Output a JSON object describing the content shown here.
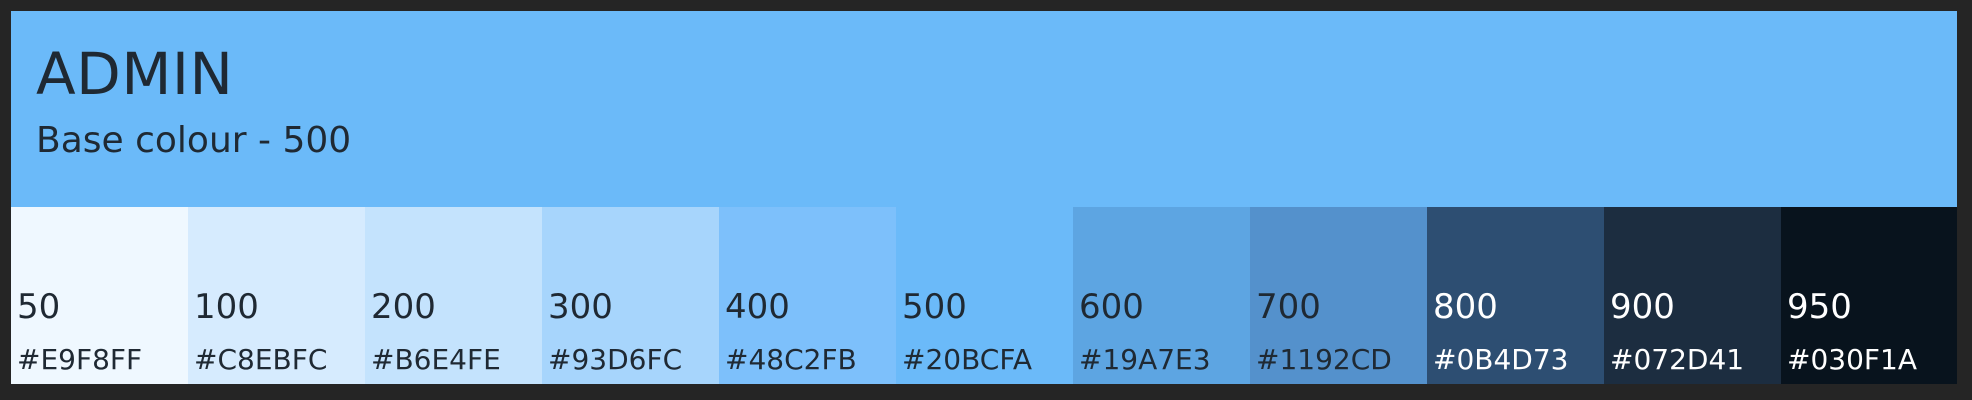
{
  "palette": {
    "title": "ADMIN",
    "subtitle": "Base colour - 500",
    "header_color": "#6BBAF9",
    "swatches": [
      {
        "label": "50",
        "hex": "#E9F8FF",
        "swatch_color": "#EFF8FF",
        "text_color": "#1F2933"
      },
      {
        "label": "100",
        "hex": "#C8EBFC",
        "swatch_color": "#D6EBFE",
        "text_color": "#1F2933"
      },
      {
        "label": "200",
        "hex": "#B6E4FE",
        "swatch_color": "#C4E3FD",
        "text_color": "#1F2933"
      },
      {
        "label": "300",
        "hex": "#93D6FC",
        "swatch_color": "#A7D5FC",
        "text_color": "#1F2933"
      },
      {
        "label": "400",
        "hex": "#48C2FB",
        "swatch_color": "#7DC0FB",
        "text_color": "#1F2933"
      },
      {
        "label": "500",
        "hex": "#20BCFA",
        "swatch_color": "#6BBAF9",
        "text_color": "#1F2933"
      },
      {
        "label": "600",
        "hex": "#19A7E3",
        "swatch_color": "#5DA5E2",
        "text_color": "#1F2933"
      },
      {
        "label": "700",
        "hex": "#1192CD",
        "swatch_color": "#5491CC",
        "text_color": "#1F2933"
      },
      {
        "label": "800",
        "hex": "#0B4D73",
        "swatch_color": "#2D4E72",
        "text_color": "#FFFFFF"
      },
      {
        "label": "900",
        "hex": "#072D41",
        "swatch_color": "#1C2D40",
        "text_color": "#FFFFFF"
      },
      {
        "label": "950",
        "hex": "#030F1A",
        "swatch_color": "#08131D",
        "text_color": "#FFFFFF"
      }
    ]
  }
}
